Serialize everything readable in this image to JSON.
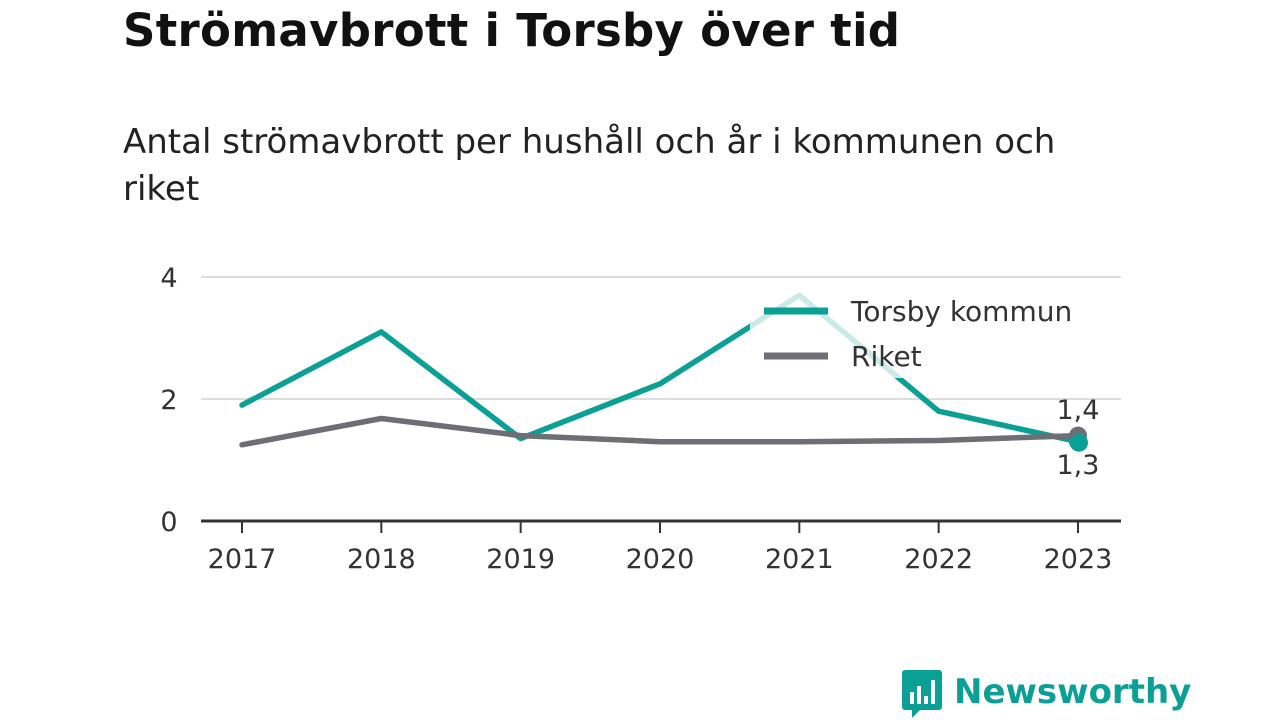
{
  "colors": {
    "accent": "#0aa095",
    "secondary": "#6e6e76",
    "grid": "#dddddd",
    "axis": "#333333"
  },
  "chart_data": {
    "type": "line",
    "title": "Strömavbrott i Torsby över tid",
    "subtitle": "Antal strömavbrott per hushåll och år i kommunen och riket",
    "x": [
      "2017",
      "2018",
      "2019",
      "2020",
      "2021",
      "2022",
      "2023"
    ],
    "ylim": [
      0,
      4
    ],
    "y_ticks": [
      "0",
      "2",
      "4"
    ],
    "grid": true,
    "legend_position": "top-right",
    "series": [
      {
        "name": "Torsby kommun",
        "color": "#0aa095",
        "values": [
          1.9,
          3.1,
          1.35,
          2.25,
          3.7,
          1.8,
          1.3
        ],
        "end_label": "1,3"
      },
      {
        "name": "Riket",
        "color": "#6e6e76",
        "values": [
          1.25,
          1.68,
          1.4,
          1.3,
          1.3,
          1.32,
          1.4
        ],
        "end_label": "1,4"
      }
    ]
  },
  "branding": {
    "logo_text": "Newsworthy",
    "logo_icon": "bar-chart-speech-bubble-icon"
  }
}
